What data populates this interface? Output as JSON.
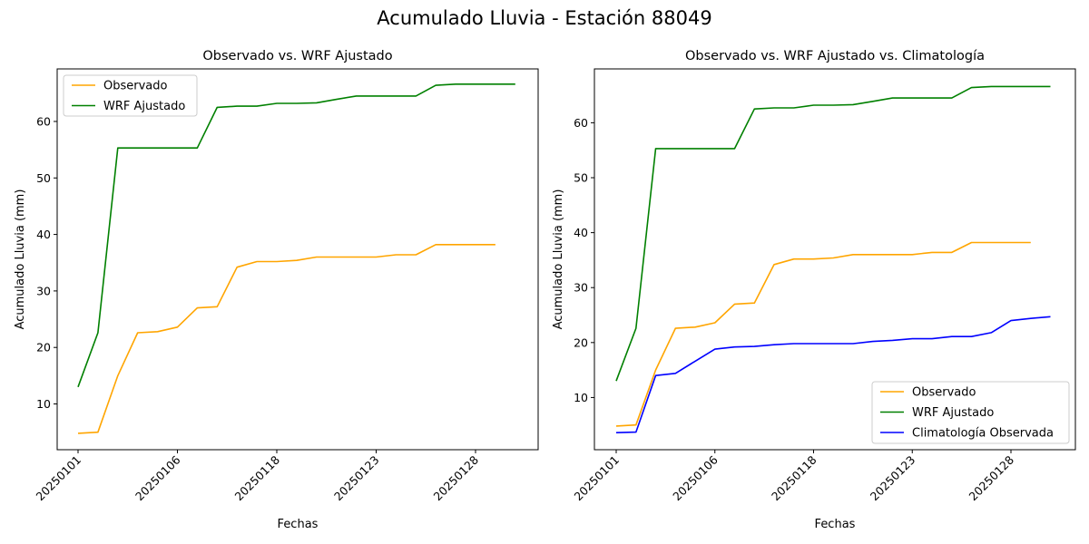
{
  "figure": {
    "suptitle": "Acumulado Lluvia - Estación 88049"
  },
  "chart_data": [
    {
      "type": "line",
      "title": "Observado vs. WRF Ajustado",
      "xlabel": "Fechas",
      "ylabel": "Acumulado Lluvia (mm)",
      "xticklabels": [
        "20250101",
        "20250106",
        "20250118",
        "20250123",
        "20250128"
      ],
      "yticks": [
        10,
        20,
        30,
        40,
        50,
        60
      ],
      "ylim": [
        1.9,
        69.3
      ],
      "legend": "top-left",
      "series": [
        {
          "name": "Observado",
          "color": "#ffa500",
          "values": [
            4.8,
            5.0,
            15.0,
            22.6,
            22.8,
            23.6,
            27.0,
            27.2,
            34.2,
            35.2,
            35.2,
            35.4,
            36.0,
            36.0,
            36.0,
            36.0,
            36.4,
            36.4,
            38.2,
            38.2,
            38.2,
            38.2
          ]
        },
        {
          "name": "WRF Ajustado",
          "color": "#008000",
          "values": [
            13.0,
            22.6,
            55.3,
            55.3,
            55.3,
            55.3,
            55.3,
            62.5,
            62.7,
            62.7,
            63.2,
            63.2,
            63.3,
            63.9,
            64.5,
            64.5,
            64.5,
            64.5,
            66.4,
            66.6,
            66.6,
            66.6,
            66.6
          ]
        }
      ]
    },
    {
      "type": "line",
      "title": "Observado vs. WRF Ajustado vs. Climatología",
      "xlabel": "Fechas",
      "ylabel": "Acumulado Lluvia (mm)",
      "xticklabels": [
        "20250101",
        "20250106",
        "20250118",
        "20250123",
        "20250128"
      ],
      "yticks": [
        10,
        20,
        30,
        40,
        50,
        60
      ],
      "ylim": [
        0.5,
        69.8
      ],
      "legend": "bottom-right",
      "series": [
        {
          "name": "Observado",
          "color": "#ffa500",
          "values": [
            4.8,
            5.0,
            15.0,
            22.6,
            22.8,
            23.6,
            27.0,
            27.2,
            34.2,
            35.2,
            35.2,
            35.4,
            36.0,
            36.0,
            36.0,
            36.0,
            36.4,
            36.4,
            38.2,
            38.2,
            38.2,
            38.2
          ]
        },
        {
          "name": "WRF Ajustado",
          "color": "#008000",
          "values": [
            13.0,
            22.6,
            55.3,
            55.3,
            55.3,
            55.3,
            55.3,
            62.5,
            62.7,
            62.7,
            63.2,
            63.2,
            63.3,
            63.9,
            64.5,
            64.5,
            64.5,
            64.5,
            66.4,
            66.6,
            66.6,
            66.6,
            66.6
          ]
        },
        {
          "name": "Climatología Observada",
          "color": "#0000ff",
          "values": [
            3.6,
            3.7,
            14.0,
            14.4,
            16.6,
            18.8,
            19.2,
            19.3,
            19.6,
            19.8,
            19.8,
            19.8,
            19.8,
            20.2,
            20.4,
            20.7,
            20.7,
            21.1,
            21.1,
            21.8,
            24.0,
            24.4,
            24.7
          ]
        }
      ]
    }
  ]
}
